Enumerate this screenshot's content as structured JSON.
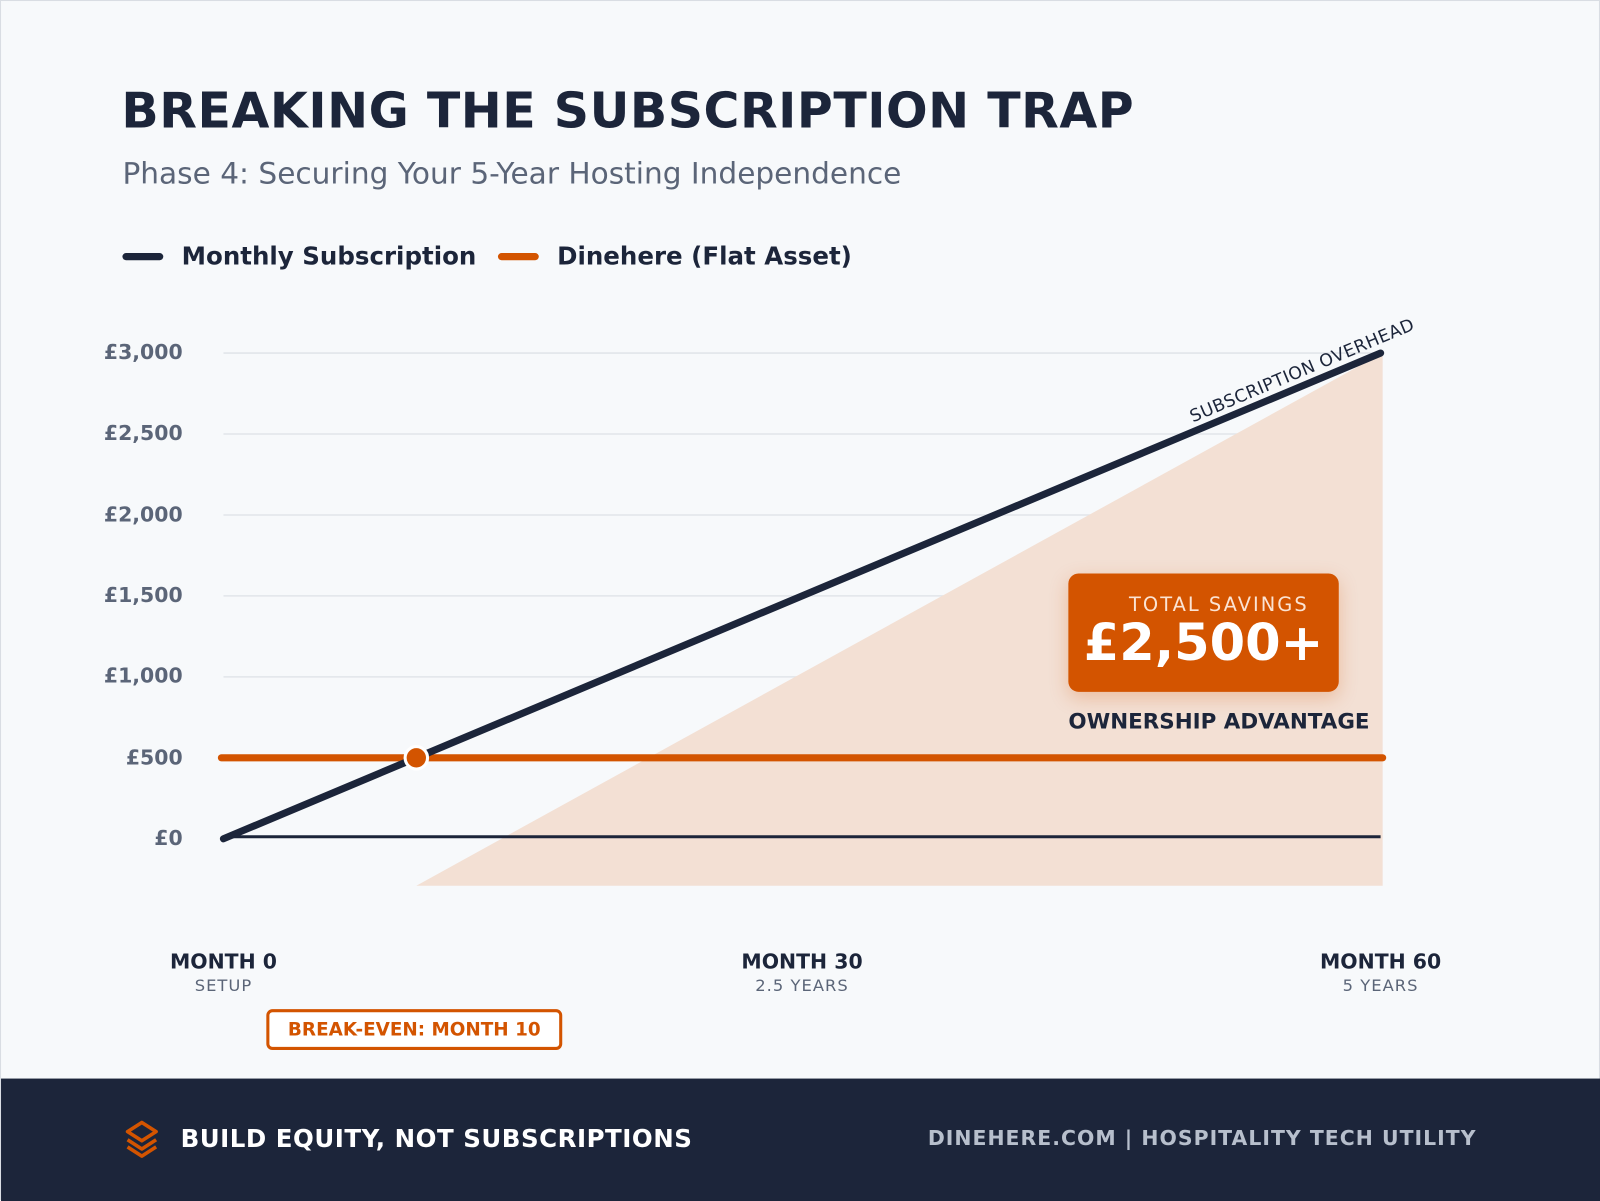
{
  "header": {
    "title": "BREAKING THE SUBSCRIPTION TRAP",
    "subtitle": "Phase 4: Securing Your 5-Year Hosting Independence"
  },
  "chart_data": {
    "type": "line",
    "x": [
      0,
      60
    ],
    "xlim": [
      0,
      60
    ],
    "ylim": [
      0,
      3000
    ],
    "yticks": [
      {
        "value": 0,
        "label": "£0"
      },
      {
        "value": 500,
        "label": "£500"
      },
      {
        "value": 1000,
        "label": "£1,000"
      },
      {
        "value": 1500,
        "label": "£1,500"
      },
      {
        "value": 2000,
        "label": "£2,000"
      },
      {
        "value": 2500,
        "label": "£2,500"
      },
      {
        "value": 3000,
        "label": "£3,000"
      }
    ],
    "xticks": [
      {
        "value": 0,
        "label": "MONTH 0",
        "sublabel": "SETUP"
      },
      {
        "value": 30,
        "label": "MONTH 30",
        "sublabel": "2.5 YEARS"
      },
      {
        "value": 60,
        "label": "MONTH 60",
        "sublabel": "5 YEARS"
      }
    ],
    "grid": true,
    "legend_placement": "top-left",
    "series": [
      {
        "name": "Monthly Subscription",
        "color": "#1c253a",
        "points": [
          [
            0,
            0
          ],
          [
            60,
            3000
          ]
        ]
      },
      {
        "name": "Dinehere (Flat Asset)",
        "color": "#d35400",
        "points": [
          [
            0,
            500
          ],
          [
            60,
            500
          ]
        ]
      }
    ],
    "savings_area_color": "#f3e0d4",
    "break_even": {
      "month": 10,
      "value": 500,
      "label": "BREAK-EVEN: MONTH 10"
    },
    "line_annotation": "SUBSCRIPTION OVERHEAD",
    "callout": {
      "label": "TOTAL SAVINGS",
      "value": "£2,500+",
      "caption": "OWNERSHIP ADVANTAGE"
    }
  },
  "footer": {
    "icon": "layers-icon",
    "tagline": "BUILD EQUITY, NOT SUBSCRIPTIONS",
    "right_text": "DINEHERE.COM | HOSPITALITY TECH UTILITY"
  }
}
